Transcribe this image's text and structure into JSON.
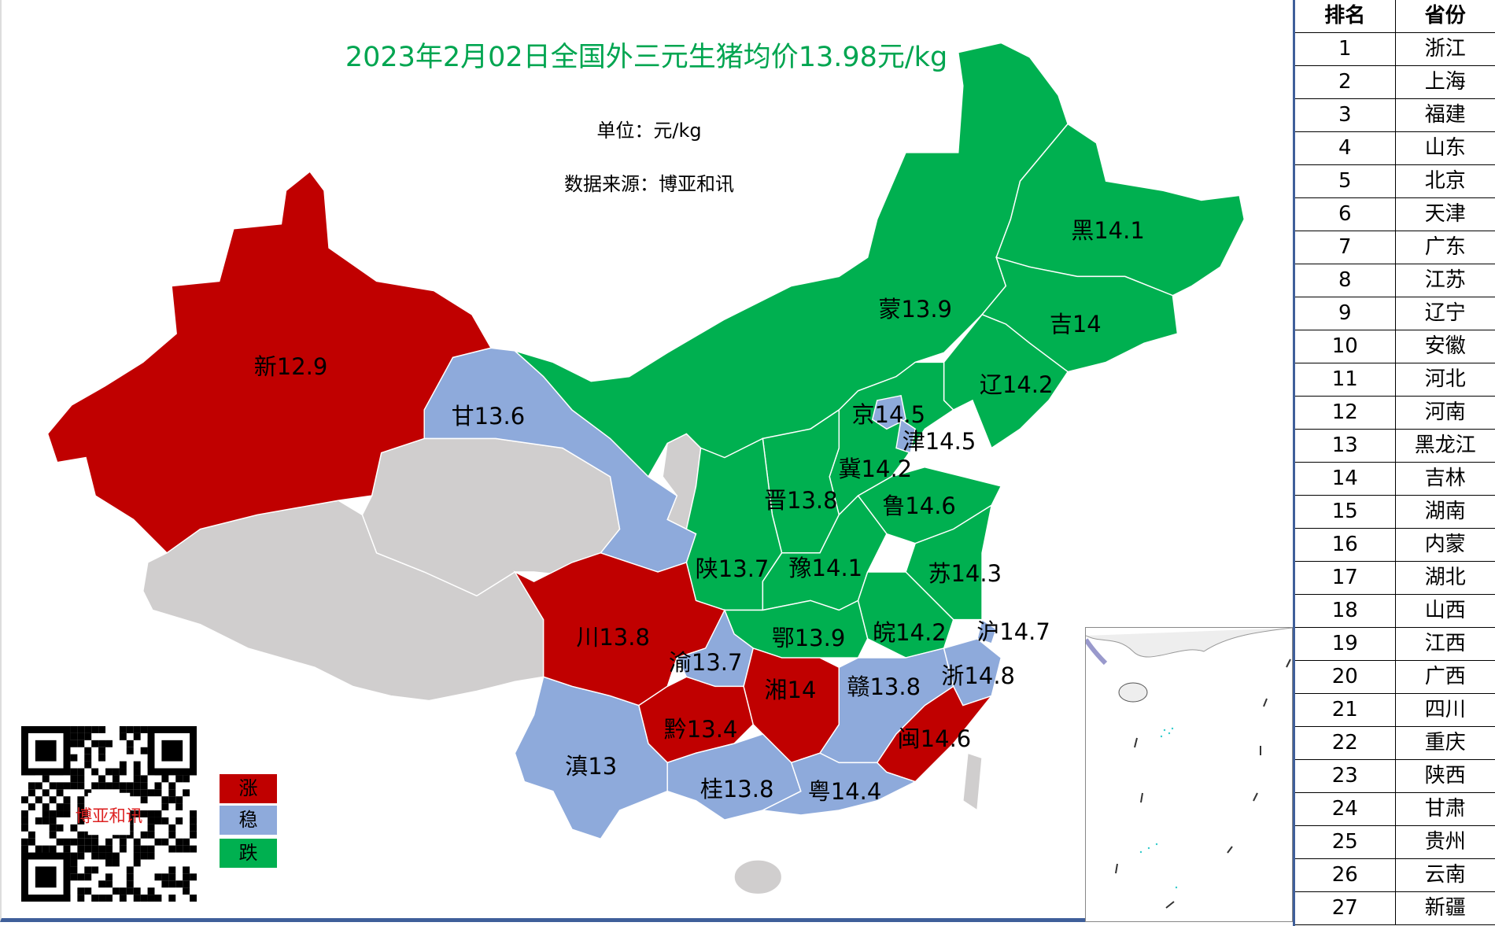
{
  "title": "2023年2月02日全国外三元生猪均价13.98元/kg",
  "unit": "单位：元/kg",
  "source": "数据来源：博亚和讯",
  "colors": {
    "up": "#c00000",
    "stable": "#8eaadb",
    "down": "#00b050",
    "nodata": "#d0cece",
    "title": "#00a550"
  },
  "legend": {
    "up": "涨",
    "stable": "稳",
    "down": "跌"
  },
  "qr_seal_text": "博亚和讯",
  "provinces": [
    {
      "id": "xj",
      "label": "新12.9",
      "trend": "up"
    },
    {
      "id": "gs",
      "label": "甘13.6",
      "trend": "stable"
    },
    {
      "id": "nm",
      "label": "蒙13.9",
      "trend": "down"
    },
    {
      "id": "hl",
      "label": "黑14.1",
      "trend": "down"
    },
    {
      "id": "jl",
      "label": "吉14",
      "trend": "down"
    },
    {
      "id": "ln",
      "label": "辽14.2",
      "trend": "down"
    },
    {
      "id": "bj",
      "label": "京14.5",
      "trend": "stable"
    },
    {
      "id": "tj",
      "label": "津14.5",
      "trend": "stable"
    },
    {
      "id": "hb",
      "label": "冀14.2",
      "trend": "down"
    },
    {
      "id": "sx",
      "label": "晋13.8",
      "trend": "down"
    },
    {
      "id": "sd",
      "label": "鲁14.6",
      "trend": "down"
    },
    {
      "id": "sn",
      "label": "陕13.7",
      "trend": "down"
    },
    {
      "id": "ha",
      "label": "豫14.1",
      "trend": "down"
    },
    {
      "id": "js",
      "label": "苏14.3",
      "trend": "down"
    },
    {
      "id": "sh",
      "label": "沪14.7",
      "trend": "stable"
    },
    {
      "id": "ah",
      "label": "皖14.2",
      "trend": "down"
    },
    {
      "id": "hub",
      "label": "鄂13.9",
      "trend": "down"
    },
    {
      "id": "sc",
      "label": "川13.8",
      "trend": "up"
    },
    {
      "id": "cq",
      "label": "渝13.7",
      "trend": "stable"
    },
    {
      "id": "hun",
      "label": "湘14",
      "trend": "up"
    },
    {
      "id": "jx",
      "label": "赣13.8",
      "trend": "stable"
    },
    {
      "id": "zj",
      "label": "浙14.8",
      "trend": "stable"
    },
    {
      "id": "gz",
      "label": "黔13.4",
      "trend": "up"
    },
    {
      "id": "fj",
      "label": "闽14.6",
      "trend": "up"
    },
    {
      "id": "yn",
      "label": "滇13",
      "trend": "stable"
    },
    {
      "id": "gx",
      "label": "桂13.8",
      "trend": "stable"
    },
    {
      "id": "gd",
      "label": "粤14.4",
      "trend": "stable"
    }
  ],
  "ranking": {
    "headers": [
      "排名",
      "省份"
    ],
    "rows": [
      [
        "1",
        "浙江"
      ],
      [
        "2",
        "上海"
      ],
      [
        "3",
        "福建"
      ],
      [
        "4",
        "山东"
      ],
      [
        "5",
        "北京"
      ],
      [
        "6",
        "天津"
      ],
      [
        "7",
        "广东"
      ],
      [
        "8",
        "江苏"
      ],
      [
        "9",
        "辽宁"
      ],
      [
        "10",
        "安徽"
      ],
      [
        "11",
        "河北"
      ],
      [
        "12",
        "河南"
      ],
      [
        "13",
        "黑龙江"
      ],
      [
        "14",
        "吉林"
      ],
      [
        "15",
        "湖南"
      ],
      [
        "16",
        "内蒙"
      ],
      [
        "17",
        "湖北"
      ],
      [
        "18",
        "山西"
      ],
      [
        "19",
        "江西"
      ],
      [
        "20",
        "广西"
      ],
      [
        "21",
        "四川"
      ],
      [
        "22",
        "重庆"
      ],
      [
        "23",
        "陕西"
      ],
      [
        "24",
        "甘肃"
      ],
      [
        "25",
        "贵州"
      ],
      [
        "26",
        "云南"
      ],
      [
        "27",
        "新疆"
      ]
    ]
  }
}
